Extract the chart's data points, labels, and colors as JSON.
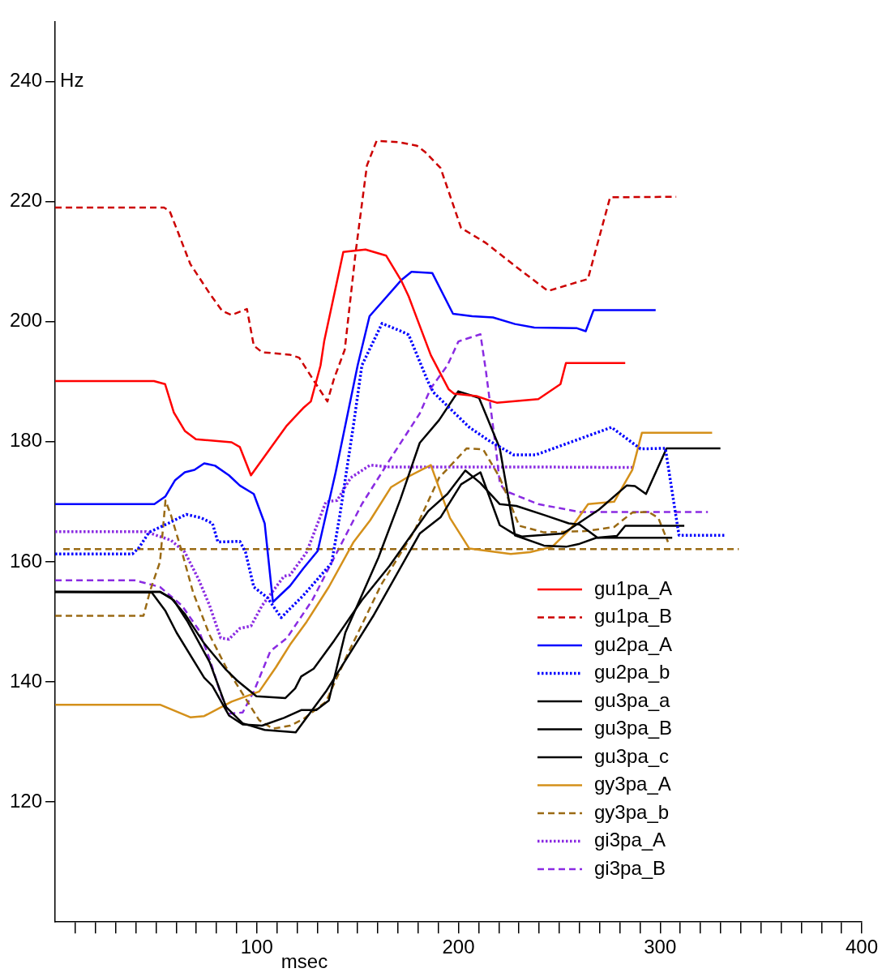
{
  "chart_data": {
    "type": "line",
    "xlabel": "msec",
    "ylabel": "Hz",
    "xlim": [
      0,
      400
    ],
    "ylim": [
      100,
      250
    ],
    "xticks": [
      {
        "value": 10,
        "label": null
      },
      {
        "value": 20,
        "label": null
      },
      {
        "value": 30,
        "label": null
      },
      {
        "value": 40,
        "label": null
      },
      {
        "value": 50,
        "label": null
      },
      {
        "value": 60,
        "label": null
      },
      {
        "value": 70,
        "label": null
      },
      {
        "value": 80,
        "label": null
      },
      {
        "value": 90,
        "label": null
      },
      100,
      {
        "value": 110,
        "label": null
      },
      {
        "value": 120,
        "label": null
      },
      {
        "value": 130,
        "label": null
      },
      {
        "value": 140,
        "label": null
      },
      {
        "value": 150,
        "label": null
      },
      {
        "value": 160,
        "label": null
      },
      {
        "value": 170,
        "label": null
      },
      {
        "value": 180,
        "label": null
      },
      {
        "value": 190,
        "label": null
      },
      200,
      {
        "value": 210,
        "label": null
      },
      {
        "value": 220,
        "label": null
      },
      {
        "value": 230,
        "label": null
      },
      {
        "value": 240,
        "label": null
      },
      {
        "value": 250,
        "label": null
      },
      {
        "value": 260,
        "label": null
      },
      {
        "value": 270,
        "label": null
      },
      {
        "value": 280,
        "label": null
      },
      {
        "value": 290,
        "label": null
      },
      300,
      {
        "value": 310,
        "label": null
      },
      {
        "value": 320,
        "label": null
      },
      {
        "value": 330,
        "label": null
      },
      {
        "value": 340,
        "label": null
      },
      {
        "value": 350,
        "label": null
      },
      {
        "value": 360,
        "label": null
      },
      {
        "value": 370,
        "label": null
      },
      {
        "value": 380,
        "label": null
      },
      {
        "value": 390,
        "label": null
      },
      400
    ],
    "yticks": [
      120,
      140,
      160,
      180,
      200,
      220,
      240
    ],
    "grid": false,
    "legend": "bottom right",
    "marker": "none",
    "series": [
      {
        "name": "gu1pa_A",
        "color": "#ff0000",
        "line_style": "solid",
        "x": [
          0,
          49,
          54.5,
          58.8,
          64.3,
          69.8,
          87.5,
          91.6,
          97.1,
          106.7,
          114.9,
          123,
          126.8,
          131.6,
          133.4,
          142.9,
          153.9,
          164.1,
          171.5,
          175.3,
          186.3,
          195.2,
          197.8,
          208.9,
          215,
          219,
          239.6,
          250.6,
          253.3,
          282.7
        ],
        "values": [
          190.1,
          190.1,
          189.6,
          184.9,
          181.8,
          180.4,
          179.9,
          179.1,
          174.4,
          178.9,
          182.7,
          185.6,
          186.7,
          192.7,
          196.7,
          211.6,
          212,
          211,
          206.9,
          204.2,
          194.4,
          188.7,
          188,
          187.6,
          186.9,
          186.5,
          187.1,
          189.6,
          193.1,
          193.1
        ]
      },
      {
        "name": "gu1pa_B",
        "color": "#cc0000",
        "line_style": "dashed",
        "x": [
          0,
          54,
          56.8,
          60.9,
          67,
          76.6,
          82.8,
          87.5,
          95.1,
          98.5,
          102.6,
          116.2,
          121,
          128.6,
          135,
          138.2,
          143.6,
          149.1,
          154.6,
          159.4,
          170.3,
          179.4,
          183.6,
          191.1,
          195.2,
          201.3,
          213.6,
          228.7,
          244.4,
          264.2,
          275.2,
          308
        ],
        "values": [
          219,
          219,
          218.4,
          214.9,
          209.6,
          204.7,
          201.8,
          201.1,
          202.1,
          196,
          194.9,
          194.5,
          194,
          190,
          186.7,
          190.4,
          195.3,
          211.8,
          226,
          230.1,
          229.9,
          229.3,
          228.2,
          225.6,
          221.6,
          215.6,
          213.1,
          209.1,
          205.1,
          207.1,
          220.7,
          220.8
        ]
      },
      {
        "name": "gu2pa_A",
        "color": "#0000ff",
        "line_style": "solid",
        "x": [
          0,
          49.2,
          54.7,
          59.5,
          64.3,
          69.1,
          73.9,
          79.3,
          86.2,
          91.6,
          98.5,
          103.9,
          108,
          116.5,
          123.1,
          130.2,
          139.1,
          150,
          155.9,
          171.6,
          176.7,
          187,
          197.3,
          206.8,
          217.1,
          228,
          237.6,
          258.8,
          263.1,
          267,
          297.8
        ],
        "values": [
          169.6,
          169.6,
          170.9,
          173.6,
          174.9,
          175.3,
          176.4,
          176,
          174.4,
          172.7,
          171.3,
          166.4,
          153.3,
          156,
          158.9,
          161.8,
          174.9,
          192.7,
          200.9,
          206.9,
          208.3,
          208.1,
          201.3,
          200.9,
          200.7,
          199.6,
          199,
          198.9,
          198.4,
          201.9,
          201.9
        ]
      },
      {
        "name": "gu2pa_b",
        "color": "#0000ff",
        "line_style": "dotted",
        "x": [
          0,
          38.3,
          41.7,
          46.5,
          56.1,
          65,
          72.5,
          78,
          80.7,
          91.6,
          94.4,
          98.5,
          105.3,
          112.1,
          116.5,
          123.1,
          137.1,
          141.2,
          148,
          152.1,
          162.1,
          171.6,
          175.3,
          184.9,
          187.6,
          205.4,
          215,
          227.3,
          238.3,
          275.9,
          290.3,
          302.6,
          308.7,
          309.4,
          332
        ],
        "values": [
          161.3,
          161.3,
          162.4,
          164.9,
          166.4,
          167.9,
          167.3,
          166.4,
          163.3,
          163.4,
          161.6,
          155.8,
          154,
          150.7,
          152.2,
          154.4,
          159.8,
          167.8,
          182.9,
          192.7,
          199.7,
          198.4,
          197.8,
          190,
          188.2,
          182.4,
          180.2,
          177.8,
          177.8,
          182.4,
          178.8,
          178.9,
          165.8,
          164.4,
          164.4
        ]
      },
      {
        "name": "gu3pa_a",
        "color": "#000000",
        "line_style": "solid",
        "x": [
          0,
          47.9,
          54.7,
          60.2,
          73.9,
          78,
          86.2,
          93,
          102.6,
          113.5,
          122,
          129.5,
          135.7,
          143.9,
          160.3,
          171.2,
          180.8,
          190.4,
          199.9,
          210.2,
          220.5,
          228,
          242.4,
          253.3,
          260.1,
          268.4,
          278.6,
          282.7,
          312
        ],
        "values": [
          155,
          154.9,
          151.8,
          148.2,
          140.7,
          139.3,
          134.4,
          132.9,
          132.7,
          134,
          135.3,
          135.3,
          136.9,
          148.2,
          160.7,
          170.4,
          179.8,
          183.6,
          188.4,
          187.3,
          178.9,
          164.4,
          162.7,
          162.5,
          163,
          164,
          164.3,
          166,
          166
        ]
      },
      {
        "name": "gu3pa_B",
        "color": "#000000",
        "line_style": "solid",
        "x": [
          0,
          52,
          57.4,
          64.3,
          73.9,
          84.8,
          90.3,
          99.8,
          114.2,
          119,
          122,
          128.2,
          138.4,
          152.1,
          165.8,
          184.9,
          194.5,
          203.4,
          210.9,
          220.5,
          228.7,
          242.4,
          254.7,
          260.1,
          269,
          306
        ],
        "values": [
          155,
          155,
          154,
          151.3,
          146.4,
          142,
          140.2,
          137.6,
          137.3,
          138.9,
          140.9,
          142.2,
          146.9,
          153.6,
          159.3,
          168.4,
          171.3,
          175.2,
          173.1,
          169.6,
          169.3,
          167.8,
          166.4,
          166.2,
          164,
          164
        ]
      },
      {
        "name": "gu3pa_c",
        "color": "#000000",
        "line_style": "solid",
        "x": [
          0,
          52,
          58.8,
          65.7,
          76.6,
          84.8,
          93,
          103.9,
          119.3,
          134.3,
          157.6,
          180.8,
          191.1,
          201.3,
          210.9,
          220.5,
          227.3,
          231.4,
          251.9,
          269.7,
          283.4,
          287.5,
          293,
          303.2,
          329.9
        ],
        "values": [
          155,
          155,
          153.6,
          150,
          143.3,
          135.8,
          133.1,
          132,
          131.6,
          138.4,
          150.9,
          164.7,
          167.4,
          172.9,
          174.9,
          166.1,
          164.7,
          164.2,
          164.7,
          168.7,
          172.7,
          172.6,
          171.3,
          178.9,
          178.9
        ]
      },
      {
        "name": "gy3pa_A",
        "color": "#d4901a",
        "line_style": "solid",
        "x": [
          0,
          52,
          67,
          73.9,
          87.5,
          101.2,
          109.4,
          116.5,
          124.7,
          135.7,
          148,
          156.2,
          166.5,
          175.3,
          186.3,
          195.8,
          205.4,
          225.9,
          235.5,
          246.5,
          255.6,
          264.3,
          277.2,
          286.2,
          291,
          325.8
        ],
        "values": [
          136.2,
          136.2,
          134.1,
          134.3,
          136.7,
          138.4,
          142.4,
          146.2,
          150,
          155.8,
          163.3,
          166.9,
          172.4,
          174.2,
          176.1,
          167.3,
          162.2,
          161.3,
          161.6,
          162.5,
          165.5,
          169.6,
          170,
          175.3,
          181.5,
          181.5
        ]
      },
      {
        "name": "gy3pa_b",
        "color": "#9a6a14",
        "line_style": "dashed",
        "x": [
          0,
          43.8,
          47.2,
          52,
          54.7,
          57.4,
          62.9,
          68.4,
          76.6,
          84.8,
          93,
          101.2,
          108,
          116.5,
          123.1,
          134.3,
          143.9,
          161.7,
          178.1,
          190.4,
          204.1,
          212.3,
          220.5,
          230.1,
          242.4,
          262.9,
          277.2,
          286.2,
          294.3,
          299.1,
          303.9
        ],
        "values": [
          151,
          151,
          155.3,
          160,
          170.2,
          167.8,
          161.6,
          154.9,
          147.8,
          142.4,
          138,
          133.6,
          132.2,
          132.7,
          133.8,
          136.7,
          143.8,
          156.2,
          165.1,
          174,
          178.9,
          178.7,
          174,
          166,
          164.9,
          165.1,
          165.8,
          168.2,
          168.3,
          167.3,
          163.3
        ]
      },
      {
        "color": "#9a6a14",
        "line_style": "dashed",
        "x": [
          4,
          339
        ],
        "values": [
          162.1,
          162.1
        ]
      },
      {
        "name": "gi3pa_A",
        "color": "#8a2be2",
        "line_style": "dotted",
        "x": [
          0,
          45.1,
          52,
          57.4,
          64.3,
          71.1,
          76.6,
          82.1,
          86.2,
          91.6,
          97.1,
          102.6,
          113.5,
          116.5,
          124.7,
          134.3,
          139.8,
          146.6,
          156.2,
          165.8,
          231.4,
          287.5
        ],
        "values": [
          165,
          165,
          164.2,
          163.6,
          161.6,
          157.1,
          152.7,
          147.3,
          147.1,
          148.9,
          149.3,
          152.7,
          157.6,
          157.8,
          161.6,
          170,
          170.2,
          174,
          176.1,
          175.8,
          175.8,
          175.7
        ]
      },
      {
        "name": "gi3pa_B",
        "color": "#8a2be2",
        "line_style": "dashed",
        "x": [
          0,
          39.6,
          52,
          62.9,
          71.1,
          76.6,
          82.1,
          86.2,
          93,
          98.5,
          106.7,
          114.9,
          127.5,
          138.4,
          152.1,
          167.1,
          180.8,
          186.3,
          194.5,
          200,
          210.9,
          213.6,
          218.4,
          220.5,
          223.2,
          239.6,
          260.1,
          323.7
        ],
        "values": [
          156.9,
          156.9,
          155.8,
          152.7,
          148.7,
          143.8,
          138,
          134.7,
          134.9,
          138.4,
          145.1,
          147.3,
          153.6,
          160.7,
          169.6,
          177.6,
          184.7,
          188.9,
          192.7,
          196.7,
          197.9,
          191.8,
          179.3,
          173.1,
          171.8,
          169.6,
          168.3,
          168.3
        ]
      }
    ]
  }
}
